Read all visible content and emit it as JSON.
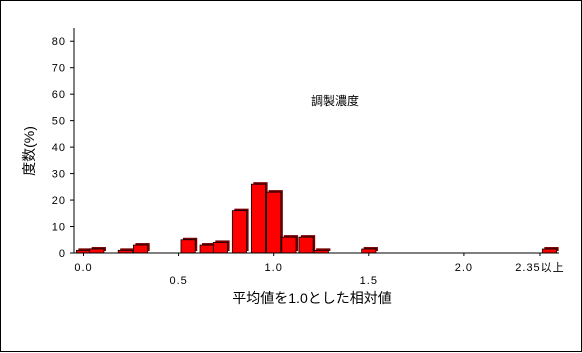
{
  "chart_data": {
    "type": "bar",
    "ylabel": "度数(%)",
    "xlabel": "平均値を1.0とした相対値",
    "annotation": "調製濃度",
    "ylim": [
      0,
      85
    ],
    "xlim": [
      -0.05,
      2.5
    ],
    "y_ticks": [
      "0",
      "10",
      "20",
      "30",
      "40",
      "50",
      "60",
      "70",
      "80"
    ],
    "x_ticks": [
      {
        "value": 0.0,
        "label": "0.0"
      },
      {
        "value": 0.5,
        "label": "0.5"
      },
      {
        "value": 1.0,
        "label": "1.0"
      },
      {
        "value": 1.5,
        "label": "1.5"
      },
      {
        "value": 2.0,
        "label": "2.0"
      },
      {
        "value": 2.4,
        "label": "2.35以上"
      }
    ],
    "bin_width": 0.075,
    "x": [
      0.0,
      0.07,
      0.22,
      0.3,
      0.55,
      0.65,
      0.72,
      0.82,
      0.92,
      1.0,
      1.08,
      1.17,
      1.25,
      1.5,
      2.45
    ],
    "values": [
      1,
      1.5,
      1,
      3,
      5,
      3,
      4,
      16,
      26,
      23,
      6,
      6,
      1,
      1.5,
      1.5
    ],
    "bar_color": "#ff0000",
    "grid": false
  }
}
